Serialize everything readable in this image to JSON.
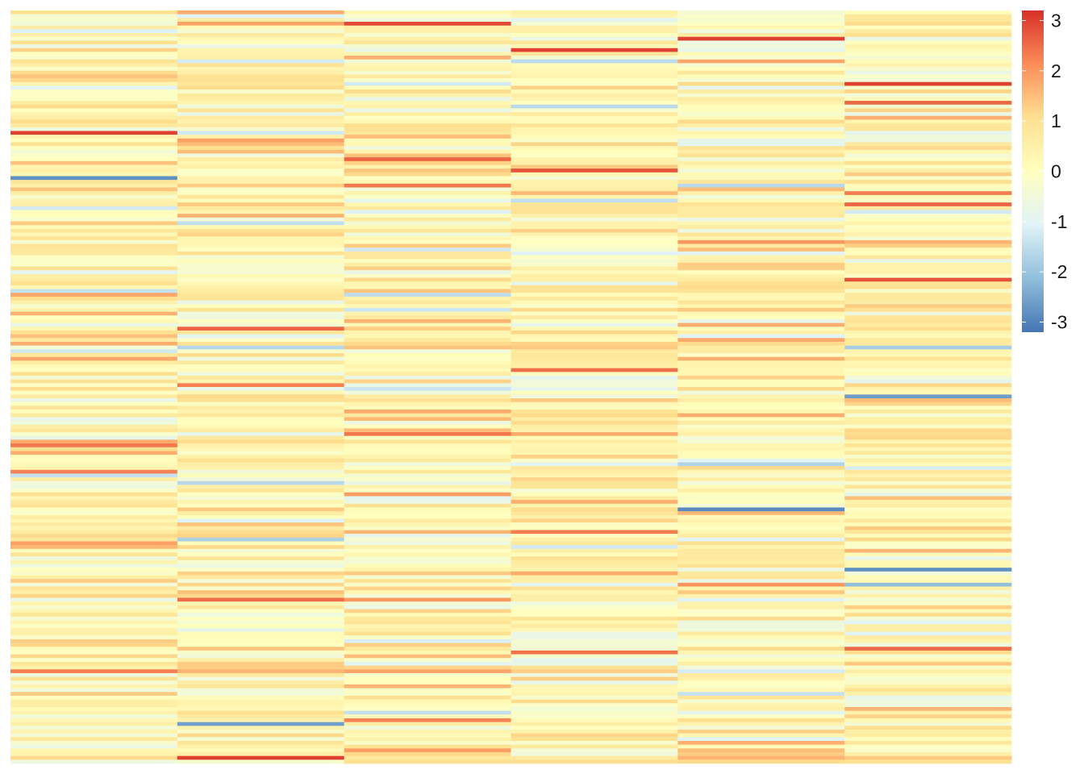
{
  "chart_data": {
    "type": "heatmap",
    "n_columns": 6,
    "n_rows": 200,
    "column_labels": [],
    "row_labels": [],
    "value_range": [
      -3.2,
      3.2
    ],
    "color_scale": {
      "name": "RdYlBu (reversed)",
      "stops": [
        {
          "value": -3.2,
          "color": "#4575b4"
        },
        {
          "value": -2.13,
          "color": "#91bfdb"
        },
        {
          "value": -1.07,
          "color": "#e0f3f8"
        },
        {
          "value": 0,
          "color": "#ffffbf"
        },
        {
          "value": 1.07,
          "color": "#fee090"
        },
        {
          "value": 2.13,
          "color": "#fc8d59"
        },
        {
          "value": 3.2,
          "color": "#d73027"
        }
      ]
    },
    "legend": {
      "ticks": [
        "3",
        "2",
        "1",
        "0",
        "-1",
        "-2",
        "-3"
      ],
      "tick_values": [
        3,
        2,
        1,
        0,
        -1,
        -2,
        -3
      ],
      "placement": "right"
    },
    "notable_cells": [
      {
        "column": 1,
        "row": 33,
        "value": 3.0
      },
      {
        "column": 1,
        "row": 45,
        "value": -2.8
      },
      {
        "column": 1,
        "row": 116,
        "value": 2.4
      },
      {
        "column": 1,
        "row": 176,
        "value": 2.3
      },
      {
        "column": 2,
        "row": 190,
        "value": -2.6
      },
      {
        "column": 2,
        "row": 199,
        "value": 3.0
      },
      {
        "column": 2,
        "row": 157,
        "value": 2.5
      },
      {
        "column": 3,
        "row": 4,
        "value": 2.9
      },
      {
        "column": 3,
        "row": 40,
        "value": 2.6
      },
      {
        "column": 3,
        "row": 113,
        "value": 2.4
      },
      {
        "column": 4,
        "row": 11,
        "value": 3.0
      },
      {
        "column": 4,
        "row": 43,
        "value": 2.8
      },
      {
        "column": 4,
        "row": 96,
        "value": 2.5
      },
      {
        "column": 5,
        "row": 8,
        "value": 3.0
      },
      {
        "column": 5,
        "row": 133,
        "value": -2.9
      },
      {
        "column": 6,
        "row": 20,
        "value": 3.0
      },
      {
        "column": 6,
        "row": 72,
        "value": 2.8
      },
      {
        "column": 6,
        "row": 103,
        "value": -2.6
      },
      {
        "column": 6,
        "row": 149,
        "value": -2.8
      }
    ]
  }
}
